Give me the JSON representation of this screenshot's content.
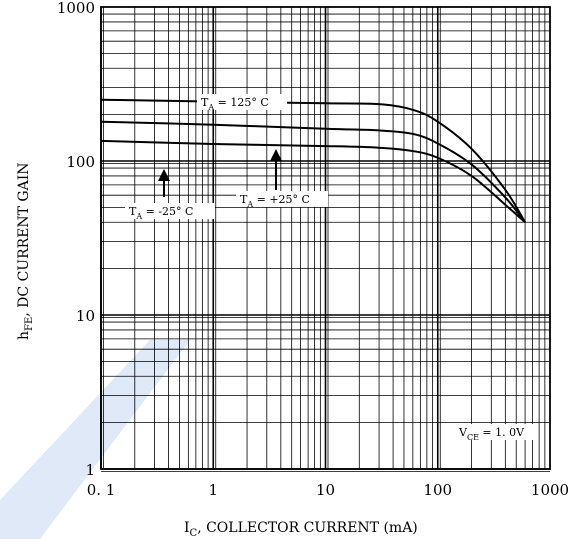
{
  "chart_data": {
    "type": "line",
    "x_scale": "log",
    "y_scale": "log",
    "xlim": [
      0.1,
      1000
    ],
    "ylim": [
      1,
      1000
    ],
    "x_ticks": [
      {
        "v": 0.1,
        "label": "0. 1"
      },
      {
        "v": 1,
        "label": "1"
      },
      {
        "v": 10,
        "label": "10"
      },
      {
        "v": 100,
        "label": "100"
      },
      {
        "v": 1000,
        "label": "1000"
      }
    ],
    "y_ticks": [
      {
        "v": 1,
        "label": "1"
      },
      {
        "v": 10,
        "label": "10"
      },
      {
        "v": 100,
        "label": "100"
      },
      {
        "v": 1000,
        "label": "1000"
      }
    ],
    "xlabel": {
      "main": "I",
      "sub": "C",
      "rest": ", COLLECTOR CURRENT (mA)"
    },
    "ylabel": {
      "main": "h",
      "sub": "FE",
      "rest": ", DC CURRENT GAIN"
    },
    "grid": true,
    "series": [
      {
        "label_main": "T",
        "label_sub": "A",
        "label_rest": " = 125° C",
        "x": [
          0.1,
          1,
          10,
          30,
          60,
          100,
          200,
          400,
          600
        ],
        "y": [
          250,
          243,
          237,
          234,
          215,
          180,
          120,
          65,
          40
        ]
      },
      {
        "label_main": "T",
        "label_sub": "A",
        "label_rest": " = +25° C",
        "x": [
          0.1,
          1,
          10,
          30,
          60,
          100,
          200,
          400,
          600
        ],
        "y": [
          180,
          172,
          162,
          158,
          150,
          130,
          95,
          58,
          40
        ]
      },
      {
        "label_main": "T",
        "label_sub": "A",
        "label_rest": " = -25° C",
        "x": [
          0.1,
          1,
          10,
          30,
          60,
          100,
          200,
          400,
          600
        ],
        "y": [
          135,
          129,
          125,
          122,
          116,
          105,
          80,
          52,
          40
        ]
      }
    ],
    "condition": {
      "main": "V",
      "sub": "CE",
      "rest": " = 1. 0V"
    }
  }
}
